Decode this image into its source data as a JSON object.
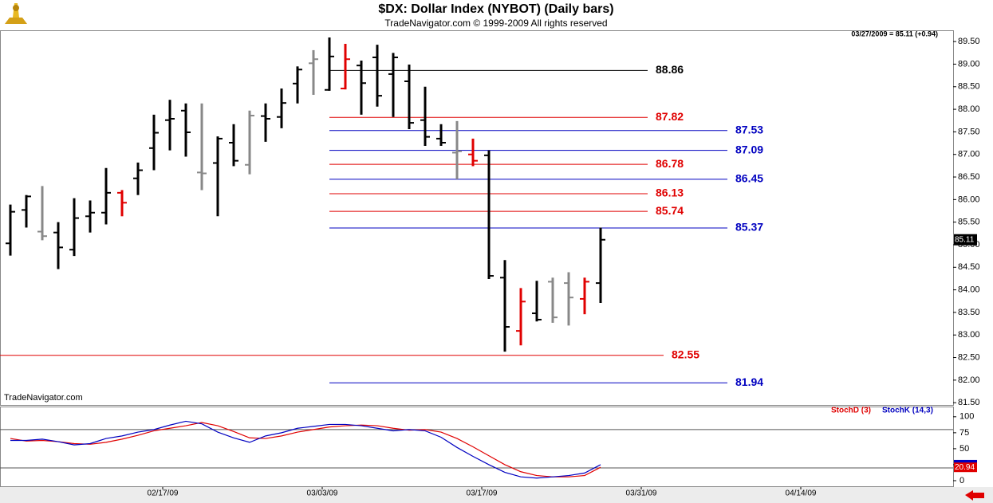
{
  "header": {
    "title": "$DX:  Dollar Index (NYBOT)  (Daily bars)",
    "subtitle": "TradeNavigator.com © 1999-2009 All rights reserved",
    "quote": "03/27/2009 = 85.11 (+0.94)",
    "watermark": "TradeNavigator.com"
  },
  "chart_data": [
    {
      "type": "ohlc",
      "open": [
        85.03,
        85.77,
        85.29,
        85.27,
        84.89,
        85.63,
        85.71,
        86.15,
        86.47,
        87.14,
        87.76,
        87.97,
        86.6,
        86.81,
        87.26,
        86.77,
        87.85,
        87.83,
        88.57,
        89.02,
        88.43,
        88.46,
        88.97,
        89.15,
        88.78,
        88.62,
        87.76,
        87.35,
        87.04,
        87.0,
        86.98,
        84.27,
        83.09,
        83.48,
        84.18,
        84.15,
        83.8,
        84.15
      ],
      "high": [
        85.89,
        86.1,
        86.3,
        85.5,
        86.03,
        85.98,
        86.7,
        86.21,
        86.82,
        87.88,
        88.21,
        88.13,
        88.13,
        87.4,
        87.67,
        87.97,
        88.13,
        88.46,
        88.95,
        89.31,
        89.59,
        89.45,
        89.08,
        89.43,
        89.25,
        88.99,
        88.5,
        87.67,
        87.74,
        87.35,
        87.09,
        84.66,
        84.04,
        84.2,
        84.27,
        84.39,
        84.27,
        85.38
      ],
      "low": [
        84.76,
        85.38,
        85.1,
        84.46,
        84.75,
        85.27,
        85.45,
        85.63,
        86.1,
        86.65,
        87.09,
        86.95,
        86.21,
        85.63,
        86.74,
        86.56,
        87.28,
        87.58,
        88.13,
        88.32,
        88.41,
        88.44,
        87.88,
        88.06,
        87.83,
        87.56,
        87.19,
        87.19,
        86.45,
        86.74,
        84.24,
        82.63,
        82.77,
        83.3,
        83.27,
        83.21,
        83.46,
        83.71
      ],
      "close": [
        85.73,
        86.07,
        85.19,
        84.94,
        85.59,
        85.71,
        86.15,
        85.93,
        86.65,
        87.48,
        87.79,
        87.49,
        86.58,
        87.35,
        86.86,
        87.86,
        87.79,
        88.14,
        88.88,
        89.11,
        89.17,
        89.11,
        88.58,
        88.3,
        89.15,
        87.7,
        87.39,
        87.26,
        87.07,
        86.86,
        84.31,
        83.18,
        83.74,
        83.34,
        83.39,
        83.83,
        84.18,
        85.11
      ],
      "colors": [
        "#000",
        "#000",
        "#888",
        "#000",
        "#000",
        "#000",
        "#000",
        "#e00000",
        "#000",
        "#000",
        "#000",
        "#000",
        "#888",
        "#000",
        "#000",
        "#888",
        "#000",
        "#000",
        "#000",
        "#888",
        "#000",
        "#e00000",
        "#000",
        "#000",
        "#000",
        "#000",
        "#000",
        "#000",
        "#888",
        "#e00000",
        "#000",
        "#000",
        "#e00000",
        "#000",
        "#888",
        "#888",
        "#e00000",
        "#000"
      ],
      "ylim": [
        81.45,
        89.75
      ],
      "yticks": [
        {
          "value": 81.5,
          "label": "81.50"
        },
        {
          "value": 82,
          "label": "82.00"
        },
        {
          "value": 82.5,
          "label": "82.50"
        },
        {
          "value": 83,
          "label": "83.00"
        },
        {
          "value": 83.5,
          "label": "83.50"
        },
        {
          "value": 84,
          "label": "84.00"
        },
        {
          "value": 84.5,
          "label": "84.50"
        },
        {
          "value": 85,
          "label": "85.00"
        },
        {
          "value": 85.5,
          "label": "85.50"
        },
        {
          "value": 86,
          "label": "86.00"
        },
        {
          "value": 86.5,
          "label": "86.50"
        },
        {
          "value": 87,
          "label": "87.00"
        },
        {
          "value": 87.5,
          "label": "87.50"
        },
        {
          "value": 88,
          "label": "88.00"
        },
        {
          "value": 88.5,
          "label": "88.50"
        },
        {
          "value": 89,
          "label": "89.00"
        },
        {
          "value": 89.5,
          "label": "89.50"
        }
      ],
      "levels": [
        {
          "value": 88.86,
          "color": "#000"
        },
        {
          "value": 87.82,
          "color": "#e00000"
        },
        {
          "value": 87.53,
          "color": "#0000c0"
        },
        {
          "value": 87.09,
          "color": "#0000c0"
        },
        {
          "value": 86.78,
          "color": "#e00000"
        },
        {
          "value": 86.45,
          "color": "#0000c0"
        },
        {
          "value": 86.13,
          "color": "#e00000"
        },
        {
          "value": 85.74,
          "color": "#e00000"
        },
        {
          "value": 85.37,
          "color": "#0000c0"
        },
        {
          "value": 82.55,
          "color": "#e00000"
        },
        {
          "value": 81.94,
          "color": "#0000c0"
        }
      ]
    },
    {
      "type": "line",
      "series": [
        {
          "name": "StochD (3)",
          "color": "#e00000",
          "values": [
            66,
            62,
            63,
            61,
            58,
            57,
            60,
            65,
            71,
            78,
            82,
            86,
            91,
            86,
            77,
            67,
            66,
            70,
            76,
            80,
            84,
            86,
            87,
            86,
            82,
            79,
            80,
            76,
            66,
            53,
            39,
            25,
            14,
            8,
            6,
            6,
            8,
            20.94
          ]
        },
        {
          "name": "StochK (14,3)",
          "color": "#0000c0",
          "values": [
            63,
            63,
            65,
            61,
            56,
            58,
            66,
            70,
            76,
            80,
            87,
            93,
            89,
            76,
            67,
            60,
            70,
            75,
            82,
            85,
            88,
            88,
            86,
            82,
            78,
            80,
            78,
            68,
            52,
            38,
            25,
            13,
            6,
            4,
            6,
            8,
            12,
            25
          ]
        }
      ],
      "ylim": [
        -10,
        116
      ],
      "yticks": [
        0,
        25,
        50,
        75,
        100
      ],
      "hlines": [
        80,
        20
      ],
      "xticks": [
        {
          "value": 9,
          "label": "02/17/09"
        },
        {
          "value": 19,
          "label": "03/03/09"
        },
        {
          "value": 29,
          "label": "03/17/09"
        },
        {
          "value": 39,
          "label": "03/31/09"
        },
        {
          "value": 49,
          "label": "04/14/09"
        }
      ]
    }
  ]
}
